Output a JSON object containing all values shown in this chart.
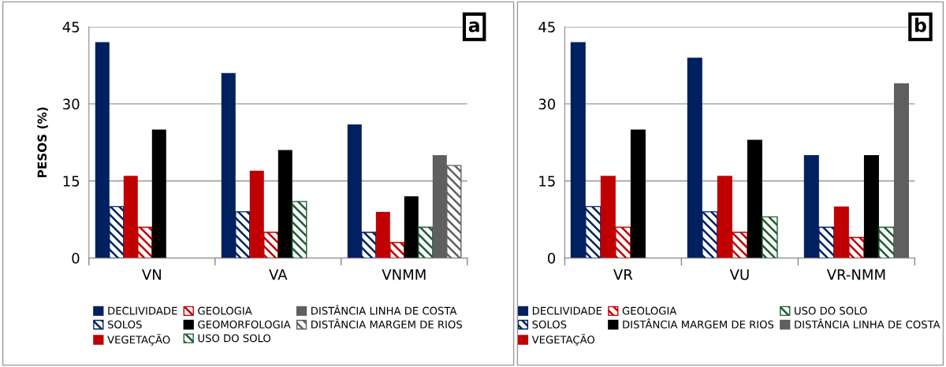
{
  "chart_data": [
    {
      "type": "bar",
      "categories": [
        "VN",
        "VA",
        "VNMM"
      ],
      "ylabel": "PESOS (%)",
      "ylim": [
        0,
        45
      ],
      "yticks": [
        0,
        15,
        30,
        45
      ],
      "grid": "y",
      "legend": "bottom",
      "annotations": [
        "a"
      ],
      "series": [
        {
          "name": "DECLIVIDADE",
          "color": "#002060",
          "values": [
            42,
            36,
            26
          ]
        },
        {
          "name": "SOLOS",
          "color": "#002060",
          "values": [
            10,
            9,
            5
          ]
        },
        {
          "name": "VEGETAÇÃO",
          "color": "#c00000",
          "values": [
            16,
            17,
            9
          ]
        },
        {
          "name": "GEOLOGIA",
          "color": "#c00000",
          "values": [
            6,
            5,
            3
          ]
        },
        {
          "name": "GEOMORFOLOGIA",
          "color": "#000000",
          "values": [
            25,
            21,
            12
          ]
        },
        {
          "name": "USO DO SOLO",
          "color": "#1e5c2e",
          "values": [
            null,
            11,
            6
          ]
        },
        {
          "name": "DISTÂNCIA LINHA DE COSTA",
          "color": "#5f5f5f",
          "values": [
            null,
            null,
            20
          ]
        },
        {
          "name": "DISTÂNCIA MARGEM DE RIOS",
          "color": "#5f5f5f",
          "values": [
            null,
            null,
            18
          ]
        }
      ]
    },
    {
      "type": "bar",
      "categories": [
        "VR",
        "VU",
        "VR-NMM"
      ],
      "ylim": [
        0,
        45
      ],
      "yticks": [
        0,
        15,
        30,
        45
      ],
      "grid": "y",
      "legend": "bottom",
      "annotations": [
        "b"
      ],
      "series": [
        {
          "name": "DECLIVIDADE",
          "color": "#002060",
          "values": [
            42,
            39,
            20
          ]
        },
        {
          "name": "SOLOS",
          "color": "#002060",
          "values": [
            10,
            9,
            6
          ]
        },
        {
          "name": "VEGETAÇÃO",
          "color": "#c00000",
          "values": [
            16,
            16,
            10
          ]
        },
        {
          "name": "GEOLOGIA",
          "color": "#c00000",
          "values": [
            6,
            5,
            4
          ]
        },
        {
          "name": "DISTÂNCIA MARGEM DE RIOS",
          "color": "#000000",
          "values": [
            25,
            23,
            20
          ]
        },
        {
          "name": "USO DO SOLO",
          "color": "#1e5c2e",
          "values": [
            null,
            8,
            6
          ]
        },
        {
          "name": "DISTÂNCIA LINHA DE COSTA",
          "color": "#5f5f5f",
          "values": [
            null,
            null,
            34
          ]
        }
      ]
    }
  ]
}
